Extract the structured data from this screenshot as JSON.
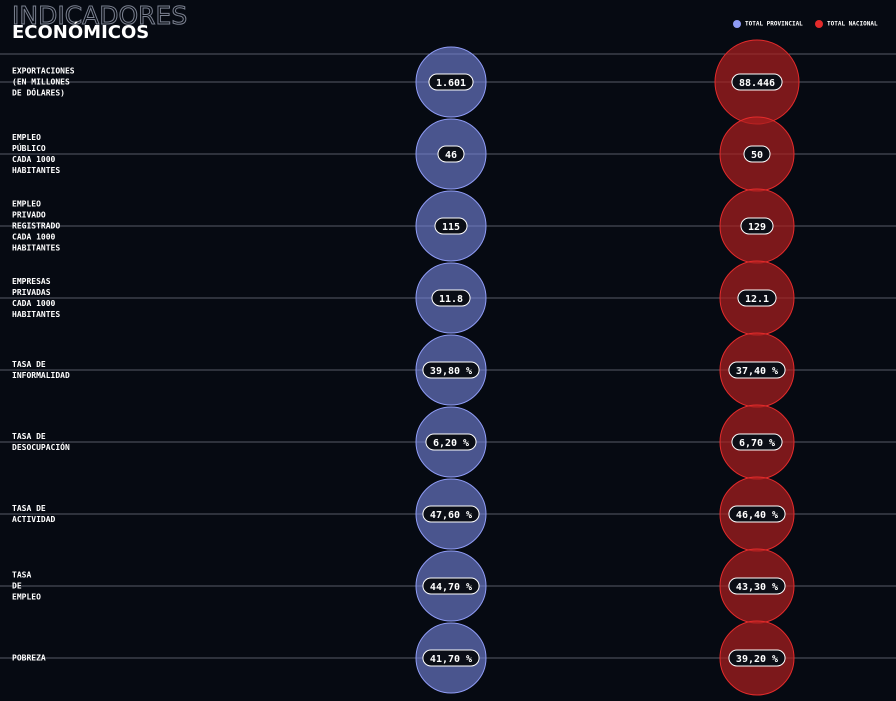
{
  "header": {
    "outline_title": "INDICADORES",
    "title": "ECONÓMICOS"
  },
  "legend": {
    "provincial": "TOTAL PROVINCIAL",
    "national": "TOTAL NACIONAL"
  },
  "rows": [
    {
      "label": [
        "EXPORTACIONES",
        "(EN MILLONES",
        "DE DÓLARES)"
      ],
      "provincial": "1.601",
      "national": "88.446"
    },
    {
      "label": [
        "EMPLEO",
        "PÚBLICO",
        "CADA 1000",
        "HABITANTES"
      ],
      "provincial": "46",
      "national": "50"
    },
    {
      "label": [
        "EMPLEO",
        "PRIVADO",
        "REGISTRADO",
        "CADA 1000",
        "HABITANTES"
      ],
      "provincial": "115",
      "national": "129"
    },
    {
      "label": [
        "EMPRESAS",
        "PRIVADAS",
        "CADA 1000",
        "HABITANTES"
      ],
      "provincial": "11.8",
      "national": "12.1"
    },
    {
      "label": [
        "TASA DE",
        "INFORMALIDAD"
      ],
      "provincial": "39,80 %",
      "national": "37,40 %"
    },
    {
      "label": [
        "TASA DE",
        "DESOCUPACIÓN"
      ],
      "provincial": "6,20 %",
      "national": "6,70 %"
    },
    {
      "label": [
        "TASA DE",
        "ACTIVIDAD"
      ],
      "provincial": "47,60 %",
      "national": "46,40 %"
    },
    {
      "label": [
        "TASA",
        "DE",
        "EMPLEO"
      ],
      "provincial": "44,70 %",
      "national": "43,30 %"
    },
    {
      "label": [
        "POBREZA"
      ],
      "provincial": "41,70 %",
      "national": "39,20 %"
    }
  ]
}
